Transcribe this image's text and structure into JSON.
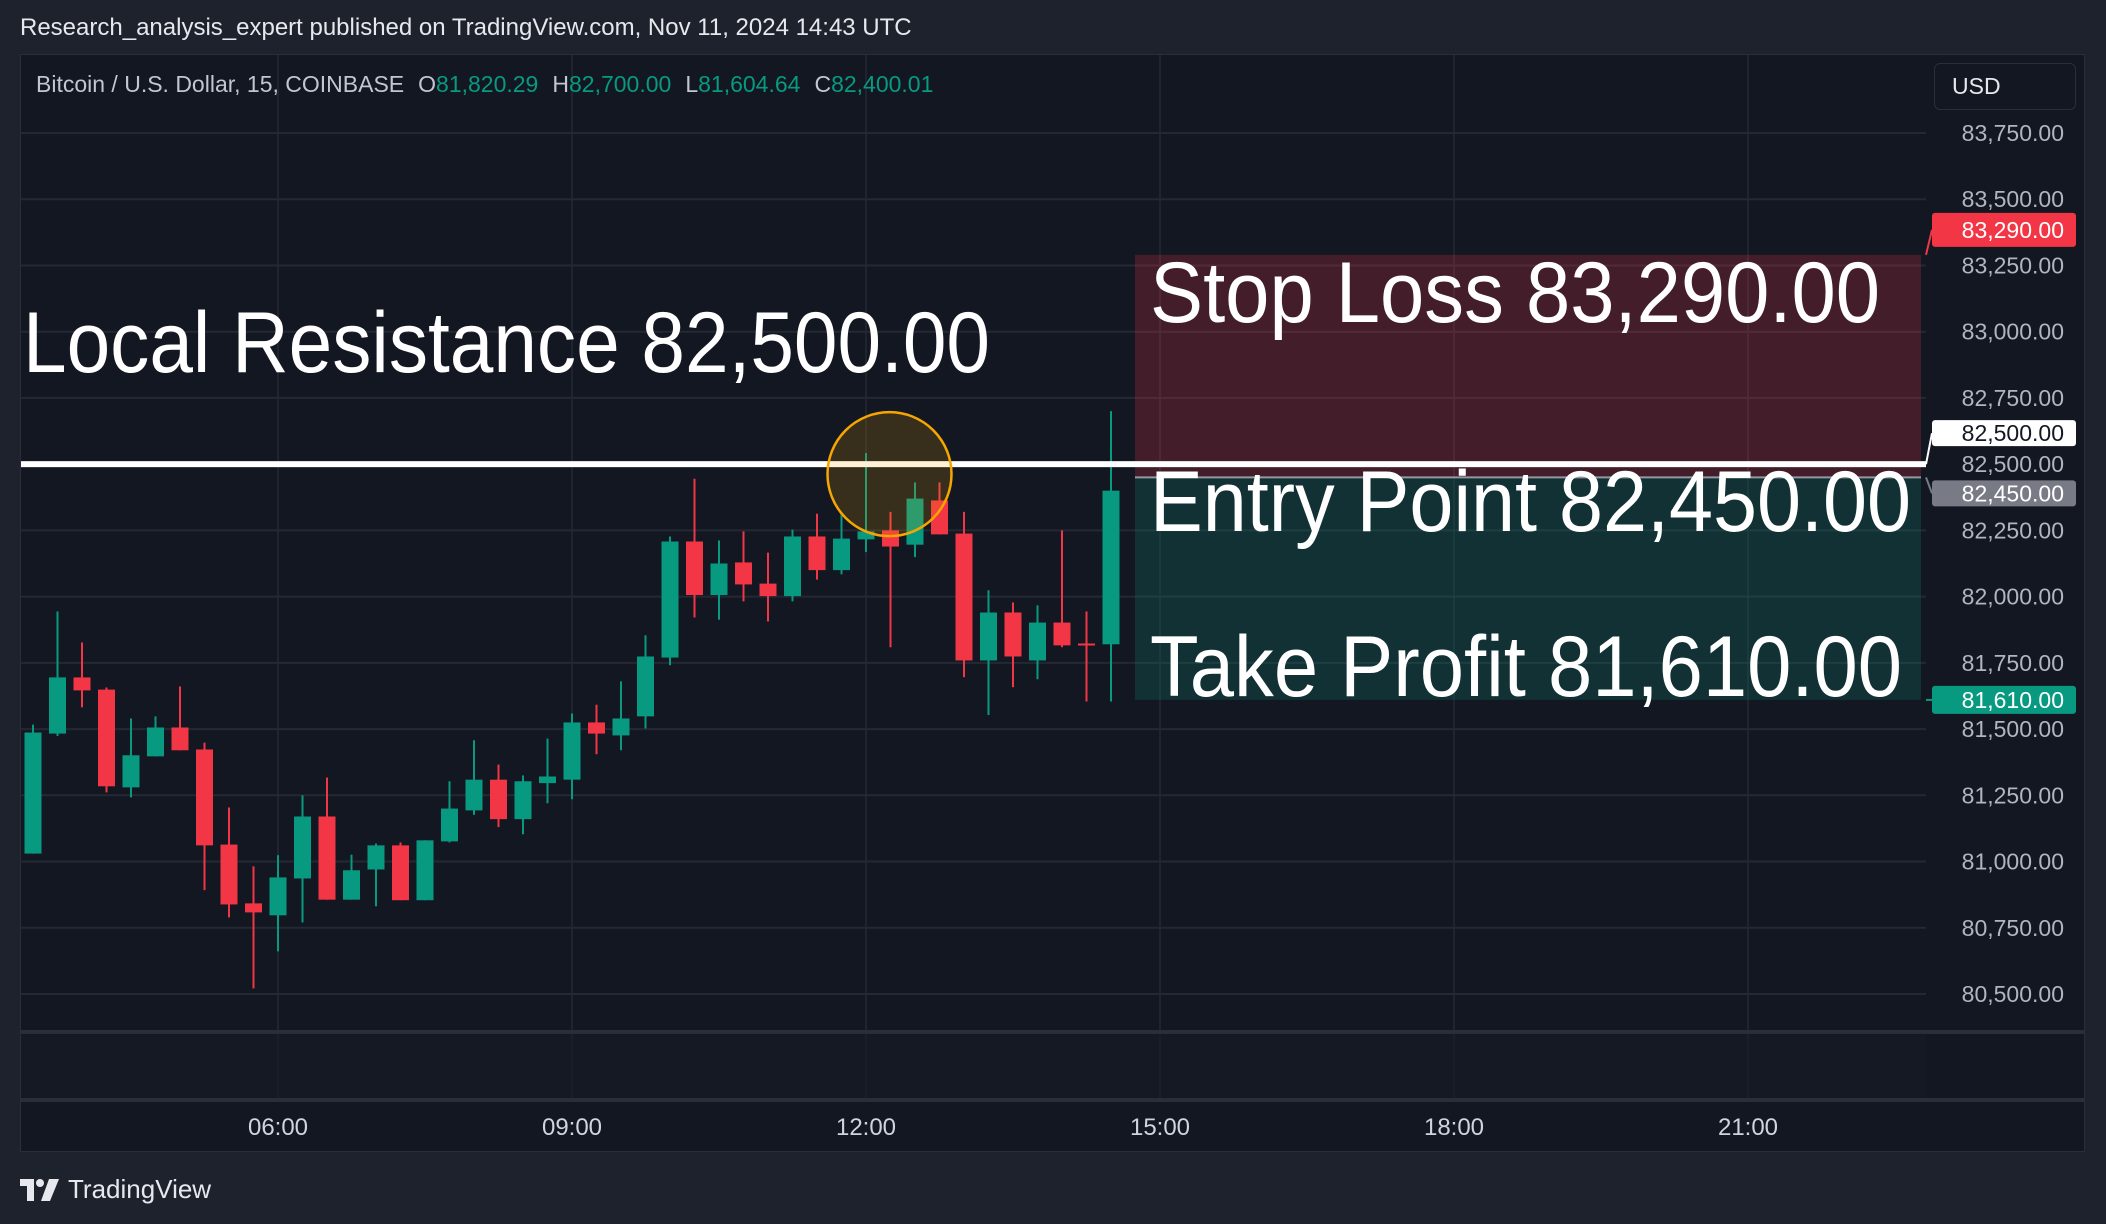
{
  "header": {
    "published": "Research_analysis_expert published on TradingView.com, Nov 11, 2024 14:43 UTC"
  },
  "legend": {
    "symbol": "Bitcoin / U.S. Dollar, 15, COINBASE",
    "o_label": "O",
    "o": "81,820.29",
    "h_label": "H",
    "h": "82,700.00",
    "l_label": "L",
    "l": "81,604.64",
    "c_label": "C",
    "c": "82,400.01"
  },
  "currency_button": "USD",
  "footer": {
    "brand": "TradingView",
    "logo_icon": "tradingview-logo-icon"
  },
  "colors": {
    "up": "#089981",
    "down": "#f23645",
    "stop_zone": "#f23645",
    "target_zone": "#089981",
    "highlight": "#f7a600",
    "resistance": "#ffffff"
  },
  "annotations": {
    "resistance_label": "Local Resistance 82,500.00",
    "stop_label": "Stop Loss 83,290.00",
    "entry_label": "Entry Point 82,450.00",
    "target_label": "Take Profit 81,610.00"
  },
  "chart_data": {
    "type": "candlestick",
    "x_ticks": [
      "06:00",
      "09:00",
      "12:00",
      "15:00",
      "18:00",
      "21:00"
    ],
    "y_ticks": [
      "83,750.00",
      "83,500.00",
      "83,250.00",
      "83,000.00",
      "82,750.00",
      "82,500.00",
      "82,250.00",
      "82,000.00",
      "81,750.00",
      "81,500.00",
      "81,250.00",
      "81,000.00",
      "80,750.00",
      "80,500.00"
    ],
    "y_tick_values": [
      83750,
      83500,
      83250,
      83000,
      82750,
      82500,
      82250,
      82000,
      81750,
      81500,
      81250,
      81000,
      80750,
      80500
    ],
    "grid": true,
    "resistance": 82500,
    "position": {
      "stop": 83290,
      "entry": 82450,
      "target": 81610
    },
    "price_labels": [
      {
        "text": "83,290.00",
        "value": 83290,
        "bg": "#f23645",
        "fg": "#ffffff"
      },
      {
        "text": "82,500.00",
        "value": 82500,
        "bg": "#ffffff",
        "fg": "#131722"
      },
      {
        "text": "82,450.00",
        "value": 82450,
        "bg": "#787b86",
        "fg": "#ffffff"
      },
      {
        "text": "81,610.00",
        "value": 81610,
        "bg": "#089981",
        "fg": "#ffffff"
      }
    ],
    "candles": [
      [
        "03:30",
        81030,
        81517,
        81030,
        81487
      ],
      [
        "03:45",
        81483,
        81944,
        81474,
        81695
      ],
      [
        "04:00",
        81695,
        81827,
        81582,
        81646
      ],
      [
        "04:15",
        81649,
        81657,
        81261,
        81284
      ],
      [
        "04:30",
        81280,
        81540,
        81242,
        81401
      ],
      [
        "04:45",
        81397,
        81548,
        81397,
        81506
      ],
      [
        "05:00",
        81506,
        81661,
        81420,
        81420
      ],
      [
        "05:15",
        81423,
        81449,
        80892,
        81061
      ],
      [
        "05:30",
        81064,
        81204,
        80789,
        80838
      ],
      [
        "05:45",
        80842,
        80982,
        80521,
        80808
      ],
      [
        "06:00",
        80797,
        81024,
        80661,
        80940
      ],
      [
        "06:15",
        80936,
        81250,
        80770,
        81170
      ],
      [
        "06:30",
        81170,
        81317,
        80856,
        80856
      ],
      [
        "06:45",
        80856,
        81026,
        80856,
        80967
      ],
      [
        "07:00",
        80970,
        81068,
        80831,
        81061
      ],
      [
        "07:15",
        81061,
        81072,
        80854,
        80854
      ],
      [
        "07:30",
        80854,
        81080,
        80854,
        81080
      ],
      [
        "07:45",
        81076,
        81303,
        81072,
        81200
      ],
      [
        "08:00",
        81193,
        81458,
        81176,
        81309
      ],
      [
        "08:15",
        81309,
        81366,
        81130,
        81160
      ],
      [
        "08:30",
        81160,
        81325,
        81103,
        81303
      ],
      [
        "08:45",
        81296,
        81464,
        81220,
        81321
      ],
      [
        "09:00",
        81309,
        81559,
        81235,
        81525
      ],
      [
        "09:15",
        81525,
        81592,
        81405,
        81483
      ],
      [
        "09:30",
        81476,
        81680,
        81420,
        81540
      ],
      [
        "09:45",
        81548,
        81854,
        81502,
        81774
      ],
      [
        "10:00",
        81770,
        82227,
        81741,
        82208
      ],
      [
        "10:15",
        82208,
        82445,
        81921,
        82006
      ],
      [
        "10:30",
        82006,
        82212,
        81913,
        82125
      ],
      [
        "10:45",
        82129,
        82246,
        81982,
        82046
      ],
      [
        "11:00",
        82049,
        82166,
        81906,
        82002
      ],
      [
        "11:15",
        82002,
        82253,
        81982,
        82227
      ],
      [
        "11:30",
        82227,
        82313,
        82064,
        82100
      ],
      [
        "11:45",
        82100,
        82320,
        82084,
        82219
      ],
      [
        "12:00",
        82216,
        82542,
        82168,
        82246
      ],
      [
        "12:15",
        82250,
        82320,
        81809,
        82189
      ],
      [
        "12:30",
        82196,
        82431,
        82149,
        82370
      ],
      [
        "12:45",
        82363,
        82431,
        82235,
        82235
      ],
      [
        "13:00",
        82238,
        82320,
        81696,
        81759
      ],
      [
        "13:15",
        81759,
        82024,
        81553,
        81940
      ],
      [
        "13:30",
        81940,
        81978,
        81658,
        81774
      ],
      [
        "13:45",
        81759,
        81967,
        81688,
        81902
      ],
      [
        "14:00",
        81902,
        82250,
        81809,
        81816
      ],
      [
        "14:15",
        81823,
        81944,
        81604,
        81819
      ],
      [
        "14:30",
        81820,
        82700,
        81604,
        82400
      ]
    ],
    "highlight_time": "12:15"
  }
}
